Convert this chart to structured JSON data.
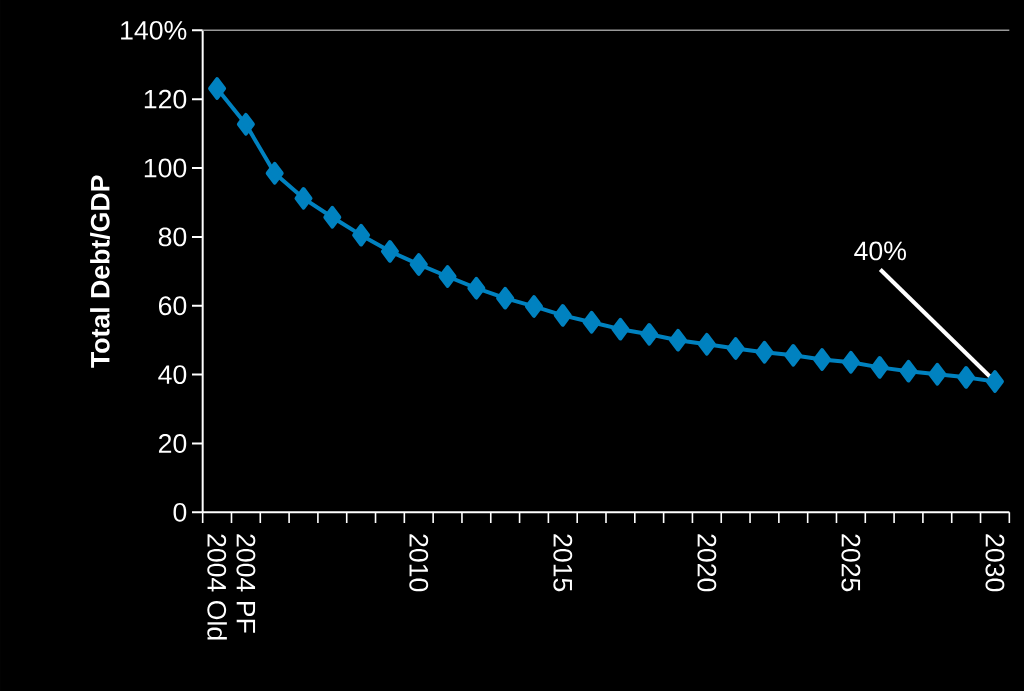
{
  "chart_data": {
    "type": "line",
    "ylabel": "Total Debt/GDP",
    "categories": [
      "2004 Old",
      "2004 PF",
      null,
      null,
      null,
      null,
      null,
      "2010",
      null,
      null,
      null,
      null,
      "2015",
      null,
      null,
      null,
      null,
      "2020",
      null,
      null,
      null,
      null,
      "2025",
      null,
      null,
      null,
      null,
      "2030"
    ],
    "values": [
      123.1,
      112.7,
      98.5,
      91.2,
      85.7,
      80.5,
      75.8,
      72.0,
      68.5,
      65.1,
      62.2,
      59.8,
      57.2,
      55.2,
      53.2,
      51.7,
      50.0,
      48.8,
      47.6,
      46.5,
      45.6,
      44.4,
      43.6,
      42.1,
      41.0,
      40.1,
      39.2,
      38.0
    ],
    "color": "#0082c0",
    "marker": "diamond",
    "line_style": "solid",
    "ylim": [
      0,
      140
    ],
    "yticks": [
      0,
      20,
      40,
      60,
      80,
      100,
      120,
      {
        "value": 140,
        "label": "140%"
      }
    ],
    "annotations": [
      {
        "text": "40%",
        "x": "2030",
        "y": 38
      }
    ]
  }
}
